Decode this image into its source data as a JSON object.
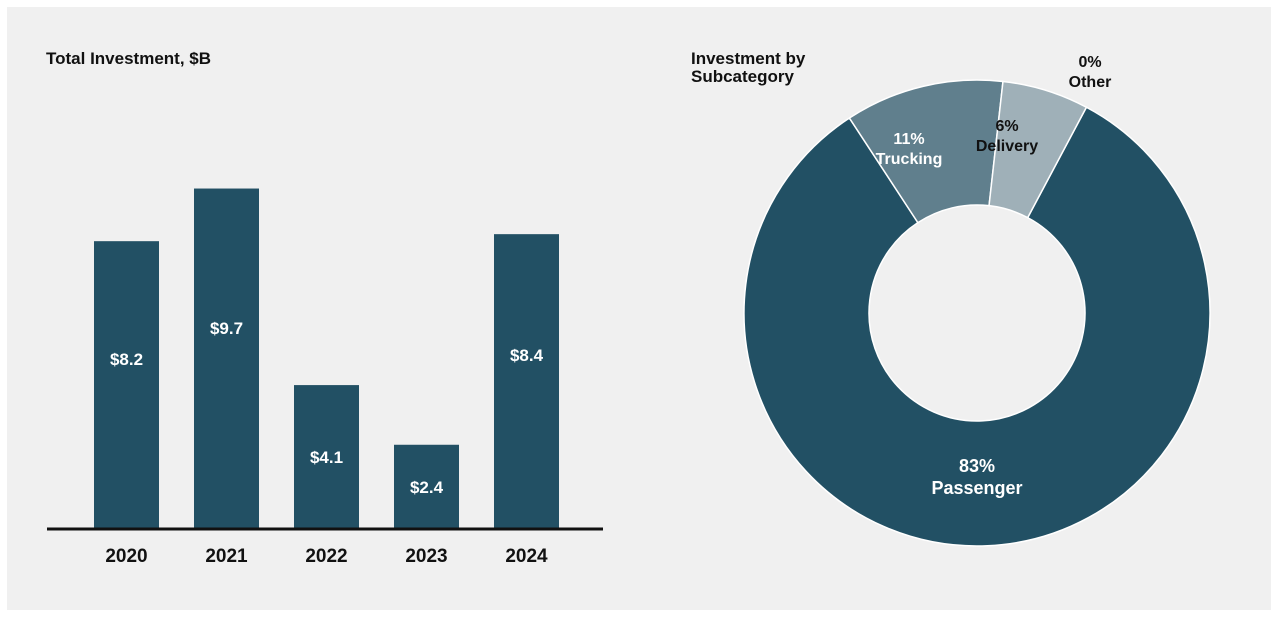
{
  "colors": {
    "panel_bg": "#f0f0f0",
    "bar": "#225064",
    "pie_passenger": "#225064",
    "pie_trucking": "#607f8d",
    "pie_delivery": "#9fb0b8",
    "pie_other": "#d5dde0",
    "label_light": "#ffffff",
    "label_dark": "#111111",
    "axis": "#111111"
  },
  "chart_data": [
    {
      "type": "bar",
      "title": "Total Investment, $B",
      "categories": [
        "2020",
        "2021",
        "2022",
        "2023",
        "2024"
      ],
      "values": [
        8.2,
        9.7,
        4.1,
        2.4,
        8.4
      ],
      "value_labels": [
        "$8.2",
        "$9.7",
        "$4.1",
        "$2.4",
        "$8.4"
      ],
      "ylim": [
        0,
        10
      ],
      "grid": false,
      "xlabel": "",
      "ylabel": ""
    },
    {
      "type": "pie",
      "title": "Investment by Subcategory",
      "donut": true,
      "slices": [
        {
          "name": "Passenger",
          "pct_label": "83%",
          "value": 83
        },
        {
          "name": "Trucking",
          "pct_label": "11%",
          "value": 11
        },
        {
          "name": "Delivery",
          "pct_label": "6%",
          "value": 6
        },
        {
          "name": "Other",
          "pct_label": "0%",
          "value": 0
        }
      ]
    }
  ]
}
